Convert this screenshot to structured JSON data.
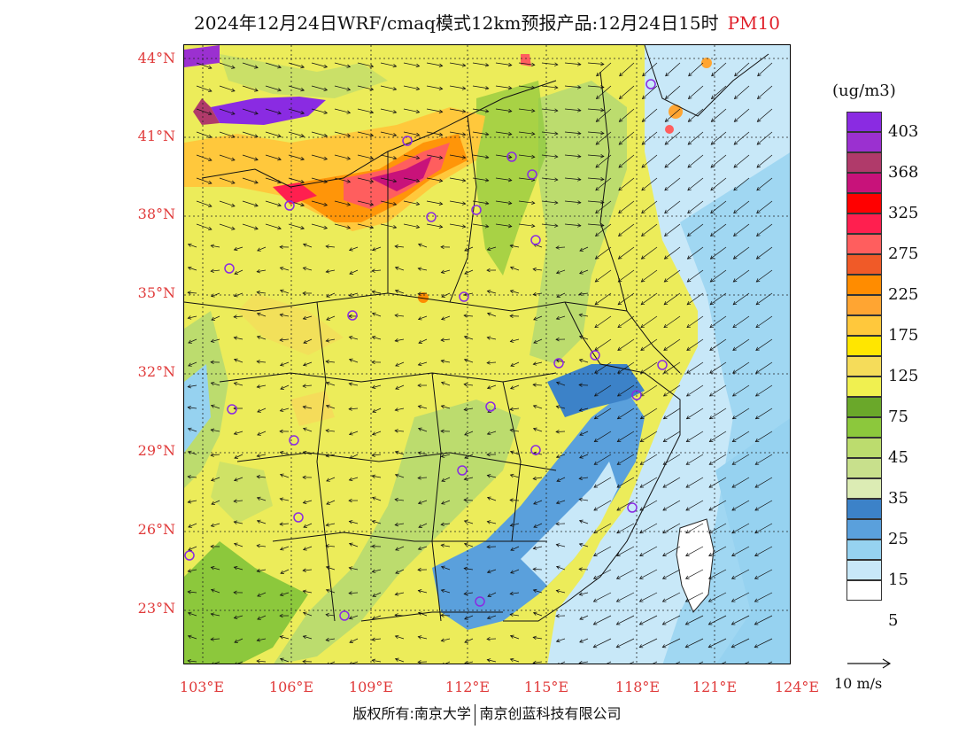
{
  "title": {
    "main": "2024年12月24日WRF/cmaq模式12km预报产品:12月24日15时",
    "pollutant": "PM10"
  },
  "axes": {
    "lat_labels": [
      "44°N",
      "41°N",
      "38°N",
      "35°N",
      "32°N",
      "29°N",
      "26°N",
      "23°N"
    ],
    "lon_labels": [
      "103°E",
      "106°E",
      "109°E",
      "112°E",
      "115°E",
      "118°E",
      "121°E",
      "124°E"
    ],
    "label_color": "#e03a3a"
  },
  "colorbar": {
    "unit": "(ug/m3)",
    "colors": [
      "#8a2be2",
      "#9b30d0",
      "#b03a6a",
      "#c8127a",
      "#ff0000",
      "#ff1f4f",
      "#ff5e5e",
      "#f05a28",
      "#ff8c00",
      "#ffa532",
      "#ffc83c",
      "#ffe600",
      "#f5dc5a",
      "#f0f050",
      "#6aa82a",
      "#8cc83c",
      "#bcdc6e",
      "#c8e08c",
      "#dcecb4",
      "#3c82c8",
      "#5aa0dc",
      "#96d2f0",
      "#c8e8f8",
      "#ffffff"
    ],
    "tick_labels": [
      "403",
      "368",
      "325",
      "275",
      "225",
      "175",
      "125",
      "75",
      "45",
      "35",
      "25",
      "15",
      "5"
    ]
  },
  "wind_reference": {
    "label": "10 m/s"
  },
  "copyright": {
    "left": "版权所有:南京大学",
    "right": "南京创蓝科技有限公司"
  },
  "cities": [
    {
      "name": "city-marker"
    }
  ]
}
